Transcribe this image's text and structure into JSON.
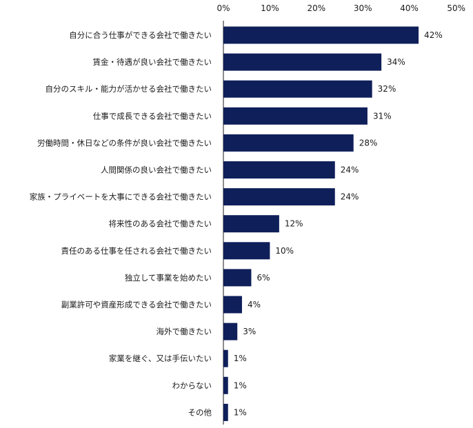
{
  "chart_data": {
    "type": "bar",
    "orientation": "horizontal",
    "categories": [
      "自分に合う仕事ができる会社で働きたい",
      "賃金・待遇が良い会社で働きたい",
      "自分のスキル・能力が活かせる会社で働きたい",
      "仕事で成長できる会社で働きたい",
      "労働時間・休日などの条件が良い会社で働きたい",
      "人間関係の良い会社で働きたい",
      "家族・プライベートを大事にできる会社で働きたい",
      "将来性のある会社で働きたい",
      "責任のある仕事を任される会社で働きたい",
      "独立して事業を始めたい",
      "副業許可や資産形成できる会社で働きたい",
      "海外で働きたい",
      "家業を継ぐ、又は手伝いたい",
      "わからない",
      "その他"
    ],
    "values": [
      42,
      34,
      32,
      31,
      28,
      24,
      24,
      12,
      10,
      6,
      4,
      3,
      1,
      1,
      1
    ],
    "data_labels": [
      "42%",
      "34%",
      "32%",
      "31%",
      "28%",
      "24%",
      "24%",
      "12%",
      "10%",
      "6%",
      "4%",
      "3%",
      "1%",
      "1%",
      "1%"
    ],
    "xlim": [
      0,
      50
    ],
    "ticks": [
      0,
      10,
      20,
      30,
      40,
      50
    ],
    "tick_labels": [
      "0%",
      "10%",
      "20%",
      "30%",
      "40%",
      "50%"
    ],
    "axis_position": "top",
    "grid": false,
    "bar_color": "#0f1f5a",
    "axis_color": "#1a1a1a"
  }
}
